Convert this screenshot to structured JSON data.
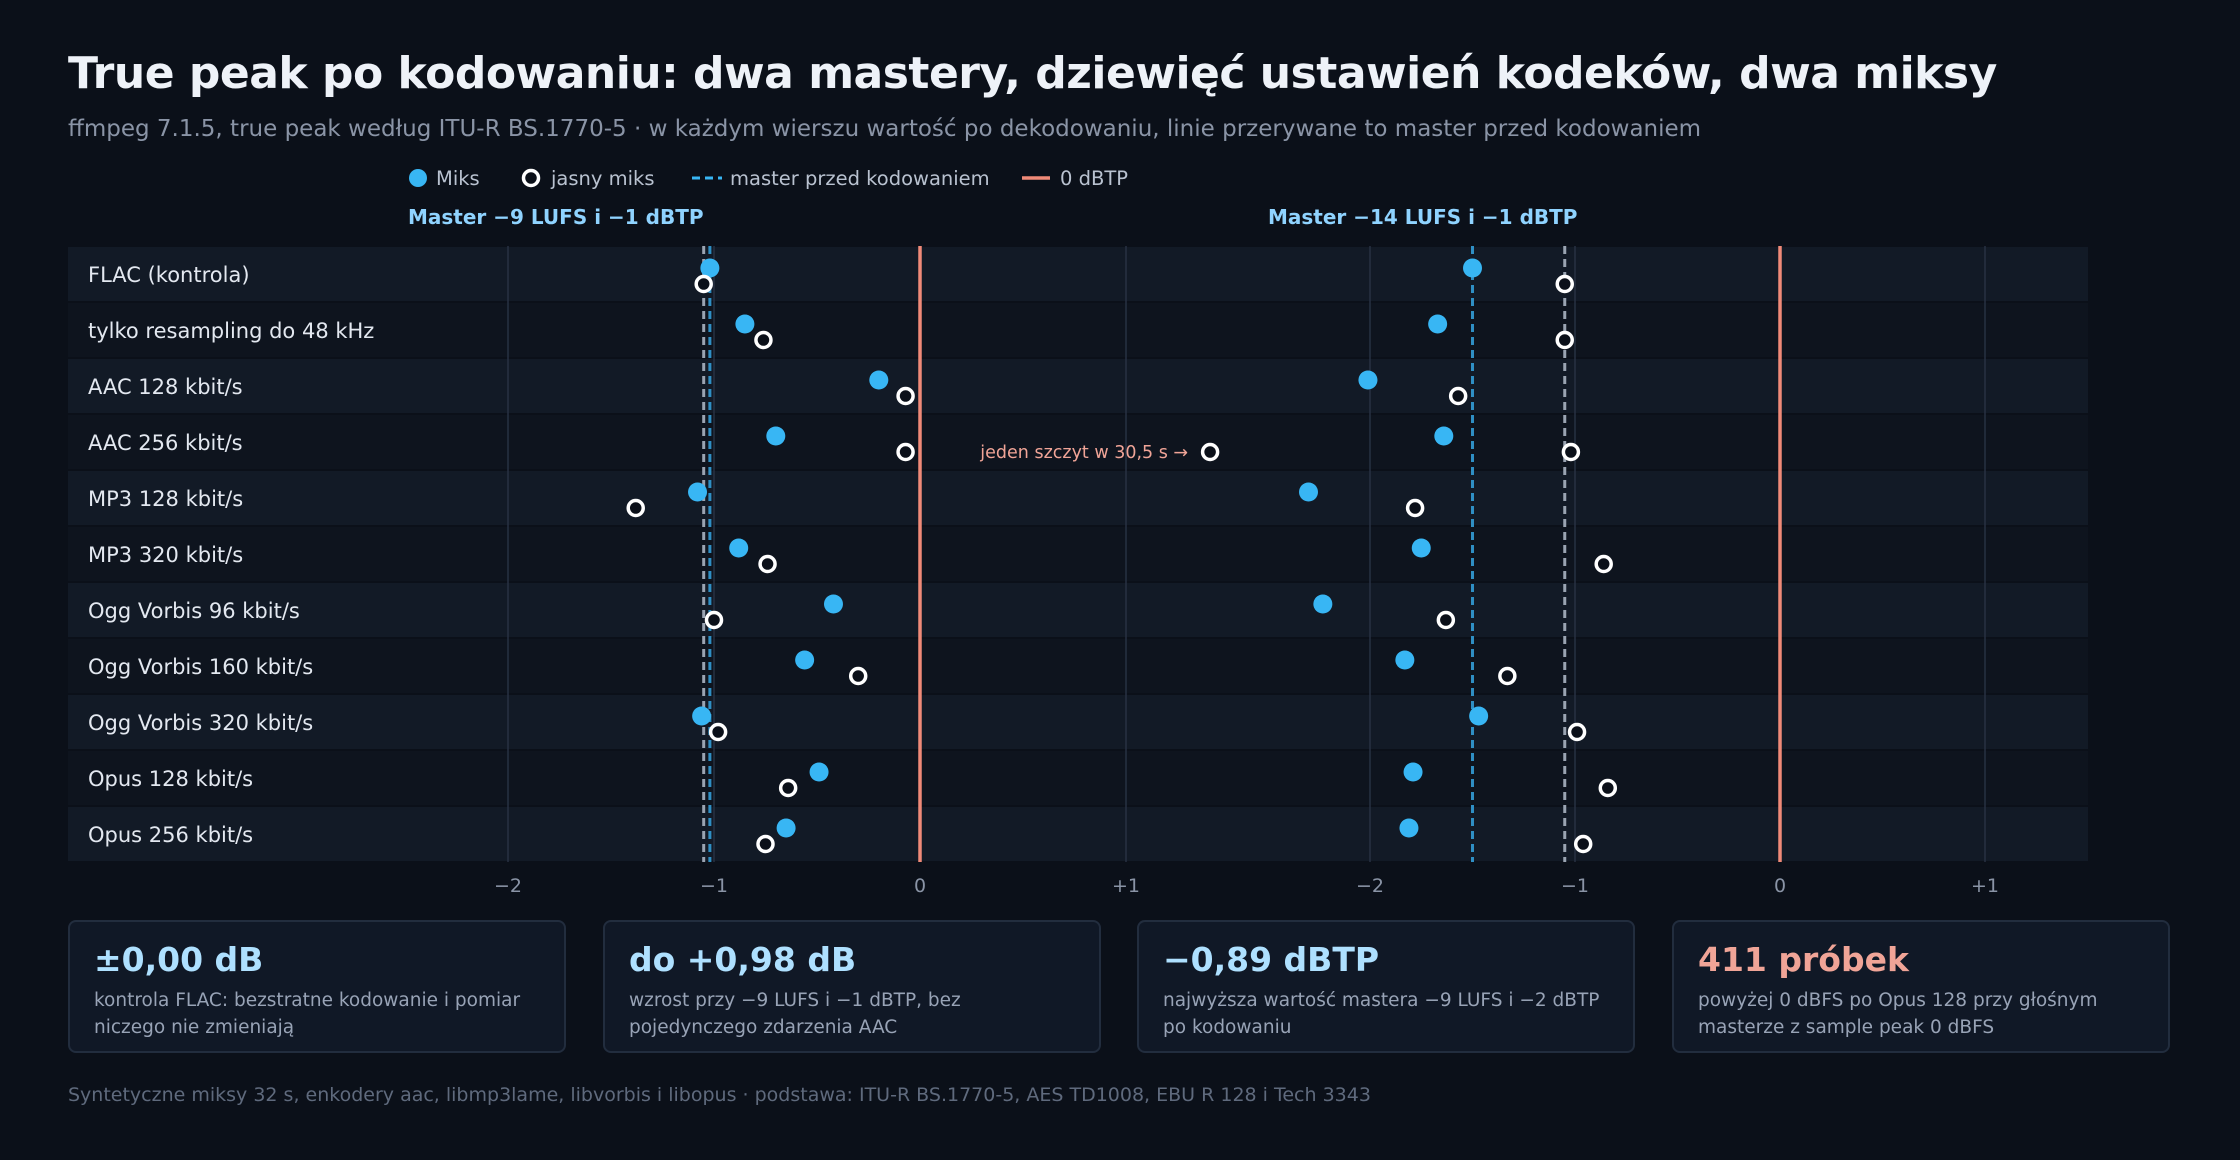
{
  "header": {
    "title": "True peak po kodowaniu: dwa mastery, dziewięć ustawień kodeków, dwa miksy",
    "subtitle": "ffmpeg 7.1.5, true peak według ITU-R BS.1770-5 · w każdym wierszu wartość po dekodowaniu, linie przerywane to master przed kodowaniem"
  },
  "legend": {
    "miks": "Miks",
    "jasny": "jasny miks",
    "master": "master przed kodowaniem",
    "zero": "0 dBTP"
  },
  "colors": {
    "background": "#0b1019",
    "miks": "#38b6f4",
    "jasny_fill": "#0b1019",
    "jasny_stroke": "#ffffff",
    "master_miks": "#2f8fc4",
    "master_jasny": "#9aa4b2",
    "zero_line": "#f08a78",
    "annotation": "#f0a497",
    "panel_title": "#8fd3ff"
  },
  "chart_data": {
    "type": "scatter",
    "categories": [
      "FLAC (kontrola)",
      "tylko resampling do 48 kHz",
      "AAC 128 kbit/s",
      "AAC 256 kbit/s",
      "MP3 128 kbit/s",
      "MP3 320 kbit/s",
      "Ogg Vorbis 96 kbit/s",
      "Ogg Vorbis 160 kbit/s",
      "Ogg Vorbis 320 kbit/s",
      "Opus 128 kbit/s",
      "Opus 256 kbit/s"
    ],
    "panels": [
      {
        "title": "Master −9 LUFS i −1 dBTP",
        "xlim": [
          -2.0,
          1.5
        ],
        "ticks": [
          -2,
          -1,
          0,
          1
        ],
        "tick_labels": [
          "−2",
          "−1",
          "0",
          "+1"
        ],
        "master_lines": {
          "miks": -1.02,
          "jasny": -1.05
        },
        "series": [
          {
            "name": "Miks",
            "values": [
              -1.02,
              -0.85,
              -0.2,
              -0.7,
              -1.08,
              -0.88,
              -0.42,
              -0.56,
              -1.06,
              -0.49,
              -0.65
            ]
          },
          {
            "name": "jasny miks",
            "values": [
              -1.05,
              -0.76,
              -0.07,
              -0.07,
              -1.38,
              -0.74,
              -1.0,
              -0.3,
              -0.98,
              -0.64,
              -0.75
            ]
          }
        ],
        "annotation": null
      },
      {
        "title": "Master −14 LUFS i −1 dBTP",
        "xlim": [
          -2.5,
          1.3
        ],
        "ticks": [
          -2,
          -1,
          0,
          1
        ],
        "tick_labels": [
          "−2",
          "−1",
          "0",
          "+1"
        ],
        "master_lines": {
          "miks": -1.5,
          "jasny": -1.05
        },
        "series": [
          {
            "name": "Miks",
            "values": [
              -1.5,
              -1.67,
              -2.01,
              -1.64,
              -2.3,
              -1.75,
              -2.23,
              -1.83,
              -1.47,
              -1.79,
              -1.81
            ]
          },
          {
            "name": "jasny miks",
            "values": [
              -1.05,
              -1.05,
              -1.57,
              -1.02,
              -1.78,
              -0.86,
              -1.63,
              -1.33,
              -0.99,
              -0.84,
              -0.96
            ]
          }
        ],
        "annotation": {
          "row": 3,
          "value": -2.78,
          "text": "jeden szczyt w 30,5 s →"
        }
      }
    ]
  },
  "cards": [
    {
      "value": "±0,00 dB",
      "desc": "kontrola FLAC: bezstratne kodowanie i pomiar niczego nie zmieniają",
      "alert": false
    },
    {
      "value": "do +0,98 dB",
      "desc": "wzrost przy −9 LUFS i −1 dBTP, bez pojedynczego zdarzenia AAC",
      "alert": false
    },
    {
      "value": "−0,89 dBTP",
      "desc": "najwyższa wartość mastera −9 LUFS i −2 dBTP po kodowaniu",
      "alert": false
    },
    {
      "value": "411 próbek",
      "desc": "powyżej 0 dBFS po Opus 128 przy głośnym masterze z sample peak 0 dBFS",
      "alert": true
    }
  ],
  "footer": "Syntetyczne miksy 32 s, enkodery aac, libmp3lame, libvorbis i libopus · podstawa: ITU-R BS.1770-5, AES TD1008, EBU R 128 i Tech 3343"
}
